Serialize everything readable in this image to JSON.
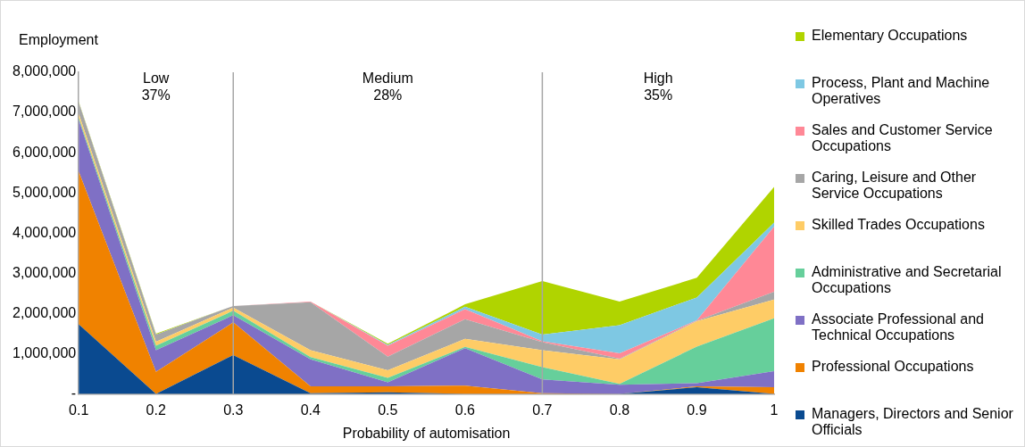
{
  "chart_data": {
    "type": "area",
    "stacked": true,
    "ylabel": "Employment",
    "xlabel": "Probability of automisation",
    "x": [
      0.1,
      0.2,
      0.3,
      0.4,
      0.5,
      0.6,
      0.7,
      0.8,
      0.9,
      1
    ],
    "xlim": [
      0.1,
      1
    ],
    "xticks": [
      {
        "value": 0.1,
        "label": "0.1"
      },
      {
        "value": 0.2,
        "label": "0.2"
      },
      {
        "value": 0.3,
        "label": "0.3"
      },
      {
        "value": 0.4,
        "label": "0.4"
      },
      {
        "value": 0.5,
        "label": "0.5"
      },
      {
        "value": 0.6,
        "label": "0.6"
      },
      {
        "value": 0.7,
        "label": "0.7"
      },
      {
        "value": 0.8,
        "label": "0.8"
      },
      {
        "value": 0.9,
        "label": "0.9"
      },
      {
        "value": 1,
        "label": "1"
      }
    ],
    "ylim": [
      0,
      8000000
    ],
    "yticks": [
      {
        "value": 0,
        "label": "-"
      },
      {
        "value": 1000000,
        "label": "1,000,000"
      },
      {
        "value": 2000000,
        "label": "2,000,000"
      },
      {
        "value": 3000000,
        "label": "3,000,000"
      },
      {
        "value": 4000000,
        "label": "4,000,000"
      },
      {
        "value": 5000000,
        "label": "5,000,000"
      },
      {
        "value": 6000000,
        "label": "6,000,000"
      },
      {
        "value": 7000000,
        "label": "7,000,000"
      },
      {
        "value": 8000000,
        "label": "8,000,000"
      }
    ],
    "grid": false,
    "legend": "right",
    "annotations": [
      "Low\n37%",
      "Medium\n28%",
      "High\n35%"
    ],
    "ref_lines": [
      {
        "axis": "x",
        "value": 0.3,
        "color": "#a6a6a6"
      },
      {
        "axis": "x",
        "value": 0.7,
        "color": "#a6a6a6"
      }
    ],
    "series": [
      {
        "name": "Managers, Directors and Senior Officials",
        "color": "#0a4a90",
        "values": [
          1730000,
          0,
          970000,
          20000,
          40000,
          0,
          0,
          0,
          170000,
          0
        ]
      },
      {
        "name": "Professional Occupations",
        "color": "#f08200",
        "values": [
          3800000,
          550000,
          810000,
          170000,
          150000,
          210000,
          20000,
          0,
          20000,
          170000
        ]
      },
      {
        "name": "Associate Professional and Technical Occupations",
        "color": "#7f70c5",
        "values": [
          1290000,
          540000,
          180000,
          670000,
          100000,
          930000,
          340000,
          230000,
          80000,
          400000
        ]
      },
      {
        "name": "Administrative and Secretarial Occupations",
        "color": "#66cf9b",
        "values": [
          50000,
          110000,
          110000,
          60000,
          110000,
          30000,
          310000,
          20000,
          910000,
          1310000
        ]
      },
      {
        "name": "Skilled Trades Occupations",
        "color": "#fecc66",
        "values": [
          100000,
          100000,
          80000,
          170000,
          190000,
          200000,
          420000,
          610000,
          630000,
          470000
        ]
      },
      {
        "name": "Caring, Leisure and Other Service Occupations",
        "color": "#a6a6a6",
        "values": [
          280000,
          180000,
          40000,
          1190000,
          340000,
          490000,
          200000,
          20000,
          10000,
          190000
        ]
      },
      {
        "name": "Sales and Customer Service Occupations",
        "color": "#ff8896",
        "values": [
          0,
          0,
          0,
          20000,
          270000,
          250000,
          20000,
          130000,
          10000,
          1620000
        ]
      },
      {
        "name": "Process, Plant and Machine Operatives",
        "color": "#7ec8e3",
        "values": [
          0,
          0,
          0,
          0,
          20000,
          60000,
          170000,
          700000,
          570000,
          100000
        ]
      },
      {
        "name": "Elementary Occupations",
        "color": "#b0d400",
        "values": [
          20000,
          20000,
          0,
          0,
          30000,
          60000,
          1330000,
          590000,
          490000,
          890000
        ]
      }
    ]
  }
}
